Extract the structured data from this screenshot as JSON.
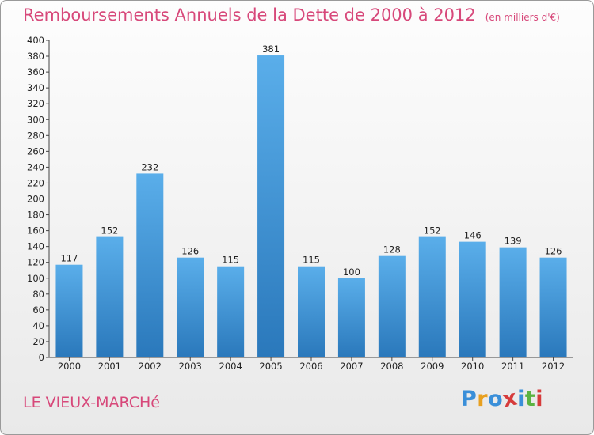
{
  "header": {
    "title": "Remboursements Annuels de la Dette de 2000 à 2012",
    "unit": "(en milliers d'€)"
  },
  "footer": {
    "place": "LE VIEUX-MARCHé",
    "logo": [
      "P",
      "r",
      "o",
      "x",
      "i",
      "t",
      "i"
    ]
  },
  "colors": {
    "title": "#d7487a",
    "bar_top": "#5aaeea",
    "bar_bottom": "#2a78bb",
    "logo": [
      "#3a8fd9",
      "#e8a020",
      "#3a8fd9",
      "#d63b3b",
      "#3a8fd9",
      "#5bb342",
      "#d63b3b"
    ]
  },
  "chart_data": {
    "type": "bar",
    "title": "Remboursements Annuels de la Dette de 2000 à 2012",
    "subtitle": "(en milliers d'€)",
    "categories": [
      "2000",
      "2001",
      "2002",
      "2003",
      "2004",
      "2005",
      "2006",
      "2007",
      "2008",
      "2009",
      "2010",
      "2011",
      "2012"
    ],
    "values": [
      117,
      152,
      232,
      126,
      115,
      381,
      115,
      100,
      128,
      152,
      146,
      139,
      126
    ],
    "ylim": [
      0,
      400
    ],
    "ytick_step": 20,
    "grid": false,
    "data_labels": true
  }
}
